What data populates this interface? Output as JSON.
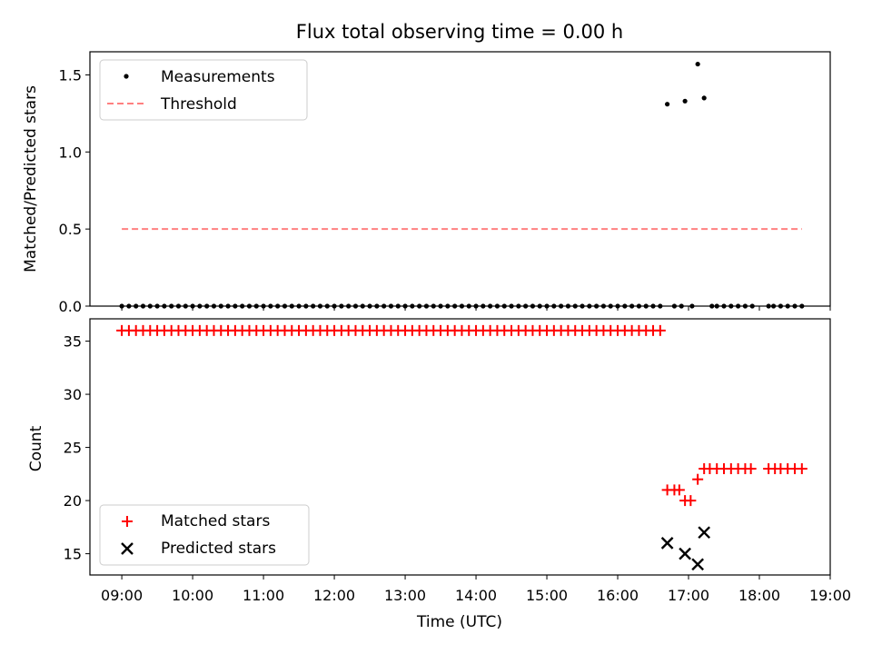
{
  "chart_data": [
    {
      "type": "scatter",
      "title": "Flux total observing time = 0.00 h",
      "xlabel": "",
      "ylabel": "Matched/Predicted stars",
      "xlim": [
        8.55,
        19.0
      ],
      "ylim": [
        0,
        1.65
      ],
      "yticks": [
        0.0,
        0.5,
        1.0,
        1.5
      ],
      "ytick_labels": [
        "0.0",
        "0.5",
        "1.0",
        "1.5"
      ],
      "legend_position": "upper-left",
      "series": [
        {
          "name": "Measurements",
          "kind": "points",
          "color": "#000000",
          "x_start": 9.0,
          "x_end": 16.6,
          "x_step": 0.1,
          "y": 0.0,
          "extra": [
            {
              "x": 16.7,
              "y": 1.31
            },
            {
              "x": 16.8,
              "y": 0.0
            },
            {
              "x": 16.9,
              "y": 0.0
            },
            {
              "x": 16.95,
              "y": 1.33
            },
            {
              "x": 17.05,
              "y": 0.0
            },
            {
              "x": 17.13,
              "y": 1.57
            },
            {
              "x": 17.22,
              "y": 1.35
            },
            {
              "x": 17.33,
              "y": 0.0
            },
            {
              "x": 17.4,
              "y": 0.0
            },
            {
              "x": 17.5,
              "y": 0.0
            },
            {
              "x": 17.6,
              "y": 0.0
            },
            {
              "x": 17.7,
              "y": 0.0
            },
            {
              "x": 17.8,
              "y": 0.0
            },
            {
              "x": 17.9,
              "y": 0.0
            },
            {
              "x": 18.13,
              "y": 0.0
            },
            {
              "x": 18.2,
              "y": 0.0
            },
            {
              "x": 18.3,
              "y": 0.0
            },
            {
              "x": 18.4,
              "y": 0.0
            },
            {
              "x": 18.5,
              "y": 0.0
            },
            {
              "x": 18.6,
              "y": 0.0
            }
          ]
        },
        {
          "name": "Threshold",
          "kind": "dashed-line",
          "color": "#ff8080",
          "x": [
            9.0,
            18.6
          ],
          "y": [
            0.5,
            0.5
          ]
        }
      ]
    },
    {
      "type": "scatter",
      "title": "",
      "xlabel": "Time (UTC)",
      "ylabel": "Count",
      "xlim": [
        8.55,
        19.0
      ],
      "ylim": [
        13,
        37.1
      ],
      "yticks": [
        15,
        20,
        25,
        30,
        35
      ],
      "ytick_labels": [
        "15",
        "20",
        "25",
        "30",
        "35"
      ],
      "xticks": [
        9,
        10,
        11,
        12,
        13,
        14,
        15,
        16,
        17,
        18,
        19
      ],
      "xtick_labels": [
        "09:00",
        "10:00",
        "11:00",
        "12:00",
        "13:00",
        "14:00",
        "15:00",
        "16:00",
        "17:00",
        "18:00",
        "19:00"
      ],
      "legend_position": "lower-left",
      "series": [
        {
          "name": "Matched stars",
          "marker": "plus",
          "color": "#ff0000",
          "x_start": 9.0,
          "x_end": 16.6,
          "x_step": 0.1,
          "y": 36,
          "extra": [
            {
              "x": 16.7,
              "y": 21
            },
            {
              "x": 16.8,
              "y": 21
            },
            {
              "x": 16.87,
              "y": 21
            },
            {
              "x": 16.95,
              "y": 20
            },
            {
              "x": 17.03,
              "y": 20
            },
            {
              "x": 17.13,
              "y": 22
            },
            {
              "x": 17.22,
              "y": 23
            },
            {
              "x": 17.3,
              "y": 23
            },
            {
              "x": 17.4,
              "y": 23
            },
            {
              "x": 17.5,
              "y": 23
            },
            {
              "x": 17.6,
              "y": 23
            },
            {
              "x": 17.7,
              "y": 23
            },
            {
              "x": 17.8,
              "y": 23
            },
            {
              "x": 17.88,
              "y": 23
            },
            {
              "x": 18.13,
              "y": 23
            },
            {
              "x": 18.22,
              "y": 23
            },
            {
              "x": 18.3,
              "y": 23
            },
            {
              "x": 18.4,
              "y": 23
            },
            {
              "x": 18.5,
              "y": 23
            },
            {
              "x": 18.6,
              "y": 23
            }
          ]
        },
        {
          "name": "Predicted stars",
          "marker": "x",
          "color": "#000000",
          "points": [
            {
              "x": 16.7,
              "y": 16
            },
            {
              "x": 16.95,
              "y": 15
            },
            {
              "x": 17.13,
              "y": 14
            },
            {
              "x": 17.22,
              "y": 17
            }
          ]
        }
      ]
    }
  ]
}
